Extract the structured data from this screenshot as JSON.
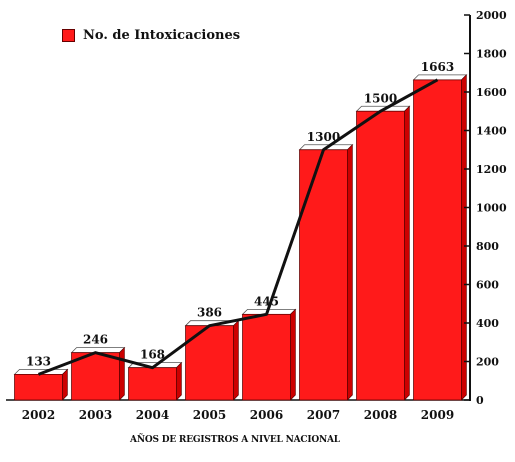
{
  "chart_data": {
    "type": "bar",
    "categories": [
      "2002",
      "2003",
      "2004",
      "2005",
      "2006",
      "2007",
      "2008",
      "2009"
    ],
    "series": [
      {
        "name": "No.  de Intoxicaciones",
        "values": [
          133,
          246,
          168,
          386,
          445,
          1300,
          1500,
          1663
        ]
      }
    ],
    "data_labels": [
      "133",
      "246",
      "168",
      "386",
      "445",
      "1300",
      "1500",
      "1663"
    ],
    "trend_line": true,
    "title": "",
    "xlabel": "AÑOS DE REGISTROS A NIVEL NACIONAL",
    "ylabel": "",
    "ylim": [
      0,
      2000
    ],
    "yticks": [
      0,
      200,
      400,
      600,
      800,
      1000,
      1200,
      1400,
      1600,
      1800,
      2000
    ],
    "y_axis_side": "right",
    "legend_position": "top-left",
    "grid": false,
    "colors": {
      "bar": "#ff1a1a",
      "bar_top": "#ffffff",
      "line": "#111111"
    }
  },
  "legend": {
    "label": "No.  de Intoxicaciones"
  }
}
